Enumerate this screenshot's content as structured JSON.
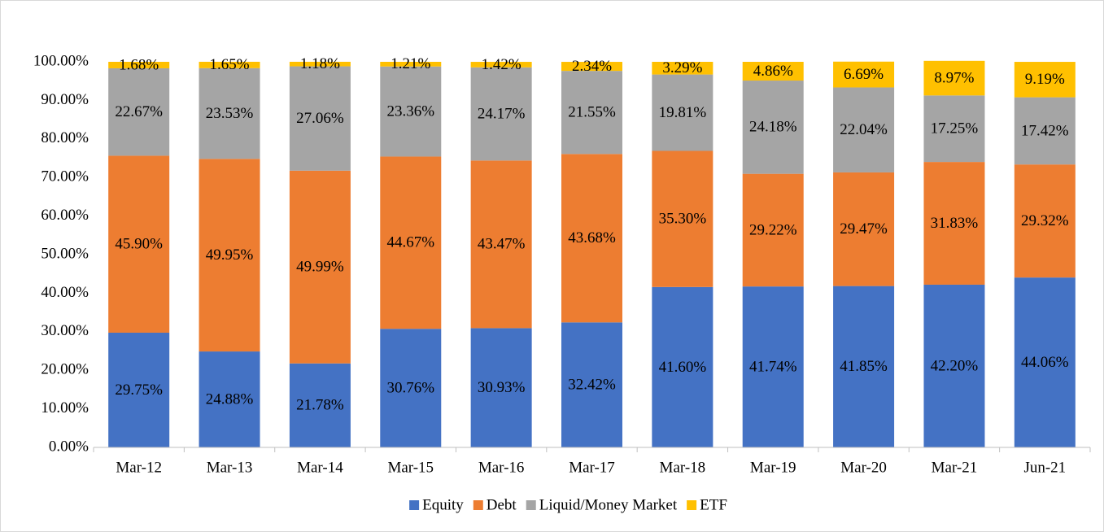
{
  "chart_data": {
    "type": "stacked_bar",
    "categories": [
      "Mar-12",
      "Mar-13",
      "Mar-14",
      "Mar-15",
      "Mar-16",
      "Mar-17",
      "Mar-18",
      "Mar-19",
      "Mar-20",
      "Mar-21",
      "Jun-21"
    ],
    "series": [
      {
        "name": "Equity",
        "color": "#4472c4",
        "values": [
          29.75,
          24.88,
          21.78,
          30.76,
          30.93,
          32.42,
          41.6,
          41.74,
          41.85,
          42.2,
          44.06
        ],
        "value_labels": [
          "29.75%",
          "24.88%",
          "21.78%",
          "30.76%",
          "30.93%",
          "32.42%",
          "41.60%",
          "41.74%",
          "41.85%",
          "42.20%",
          "44.06%"
        ]
      },
      {
        "name": "Debt",
        "color": "#ed7d31",
        "values": [
          45.9,
          49.95,
          49.99,
          44.67,
          43.47,
          43.68,
          35.3,
          29.22,
          29.47,
          31.83,
          29.32
        ],
        "value_labels": [
          "45.90%",
          "49.95%",
          "49.99%",
          "44.67%",
          "43.47%",
          "43.68%",
          "35.30%",
          "29.22%",
          "29.47%",
          "31.83%",
          "29.32%"
        ]
      },
      {
        "name": "Liquid/Money Market",
        "color": "#a5a5a5",
        "values": [
          22.67,
          23.53,
          27.06,
          23.36,
          24.17,
          21.55,
          19.81,
          24.18,
          22.04,
          17.25,
          17.42
        ],
        "value_labels": [
          "22.67%",
          "23.53%",
          "27.06%",
          "23.36%",
          "24.17%",
          "21.55%",
          "19.81%",
          "24.18%",
          "22.04%",
          "17.25%",
          "17.42%"
        ]
      },
      {
        "name": "ETF",
        "color": "#ffc000",
        "values": [
          1.68,
          1.65,
          1.18,
          1.21,
          1.42,
          2.34,
          3.29,
          4.86,
          6.69,
          8.97,
          9.19
        ],
        "value_labels": [
          "1.68%",
          "1.65%",
          "1.18%",
          "1.21%",
          "1.42%",
          "2.34%",
          "3.29%",
          "4.86%",
          "6.69%",
          "8.97%",
          "9.19%"
        ]
      }
    ],
    "ylim": [
      0,
      100
    ],
    "yticks": [
      {
        "value": 0,
        "label": "0.00%"
      },
      {
        "value": 10,
        "label": "10.00%"
      },
      {
        "value": 20,
        "label": "20.00%"
      },
      {
        "value": 30,
        "label": "30.00%"
      },
      {
        "value": 40,
        "label": "40.00%"
      },
      {
        "value": 50,
        "label": "50.00%"
      },
      {
        "value": 60,
        "label": "60.00%"
      },
      {
        "value": 70,
        "label": "70.00%"
      },
      {
        "value": 80,
        "label": "80.00%"
      },
      {
        "value": 90,
        "label": "90.00%"
      },
      {
        "value": 100,
        "label": "100.00%"
      }
    ],
    "grid": false,
    "legend": "bottom"
  }
}
